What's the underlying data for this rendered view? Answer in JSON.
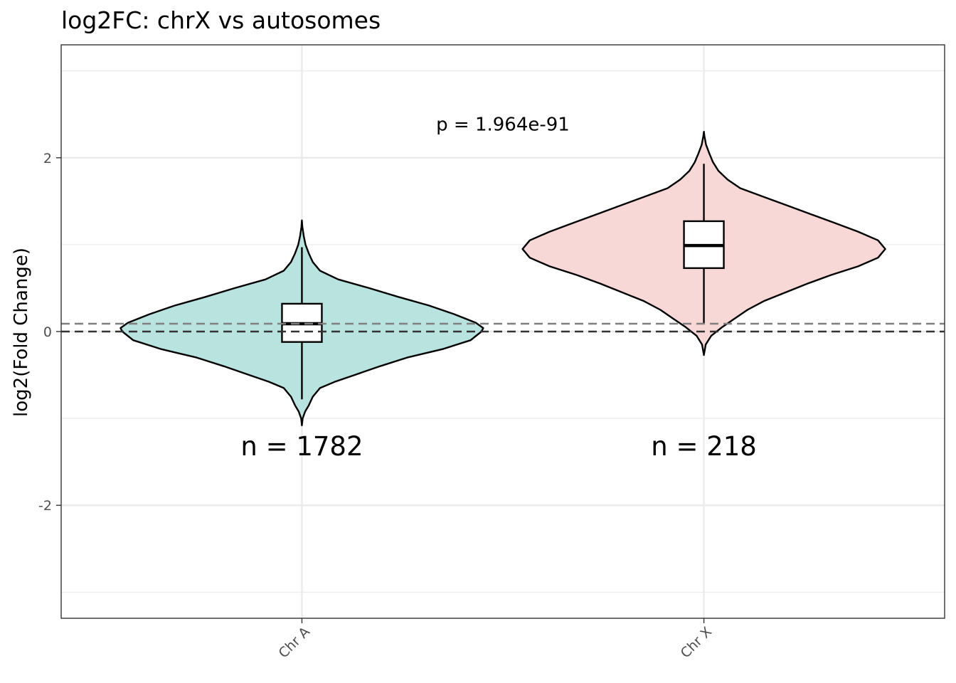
{
  "chart_data": {
    "type": "violin",
    "title": "log2FC: chrX vs autosomes",
    "xlabel": "",
    "ylabel": "log2(Fold Change)",
    "categories": [
      "Chr A",
      "Chr X"
    ],
    "ylim": [
      -3.3,
      3.3
    ],
    "y_ticks": [
      -2,
      0,
      2
    ],
    "y_tick_labels": [
      "-2",
      "0",
      "2"
    ],
    "grid": true,
    "reference_lines": [
      {
        "y": 0,
        "style": "dashed",
        "color": "#333333"
      },
      {
        "y": 0.09,
        "style": "dashed",
        "color": "#7f7f7f"
      }
    ],
    "series": [
      {
        "category": "Chr A",
        "fill": "#b8e3df",
        "n_label": "n = 1782",
        "box": {
          "whisker_low": -0.78,
          "q1": -0.12,
          "median": 0.09,
          "q3": 0.32,
          "whisker_high": 0.97
        },
        "violin_profile": [
          [
            -1.08,
            0.0
          ],
          [
            -1.0,
            0.004
          ],
          [
            -0.92,
            0.018
          ],
          [
            -0.85,
            0.038
          ],
          [
            -0.75,
            0.06
          ],
          [
            -0.65,
            0.1
          ],
          [
            -0.58,
            0.18
          ],
          [
            -0.5,
            0.29
          ],
          [
            -0.4,
            0.43
          ],
          [
            -0.3,
            0.58
          ],
          [
            -0.2,
            0.78
          ],
          [
            -0.1,
            0.93
          ],
          [
            0.0,
            0.99
          ],
          [
            0.04,
            1.0
          ],
          [
            0.1,
            0.96
          ],
          [
            0.2,
            0.84
          ],
          [
            0.3,
            0.7
          ],
          [
            0.4,
            0.53
          ],
          [
            0.5,
            0.37
          ],
          [
            0.6,
            0.2
          ],
          [
            0.7,
            0.1
          ],
          [
            0.8,
            0.06
          ],
          [
            0.9,
            0.038
          ],
          [
            1.0,
            0.02
          ],
          [
            1.1,
            0.01
          ],
          [
            1.2,
            0.003
          ],
          [
            1.28,
            0.0
          ]
        ]
      },
      {
        "category": "Chr X",
        "fill": "#f8d7d7",
        "n_label": "n = 218",
        "box": {
          "whisker_low": 0.09,
          "q1": 0.73,
          "median": 0.99,
          "q3": 1.27,
          "whisker_high": 1.93
        },
        "violin_profile": [
          [
            -0.27,
            0.0
          ],
          [
            -0.15,
            0.01
          ],
          [
            -0.05,
            0.04
          ],
          [
            0.05,
            0.1
          ],
          [
            0.15,
            0.17
          ],
          [
            0.25,
            0.24
          ],
          [
            0.35,
            0.33
          ],
          [
            0.45,
            0.45
          ],
          [
            0.55,
            0.57
          ],
          [
            0.65,
            0.7
          ],
          [
            0.75,
            0.85
          ],
          [
            0.85,
            0.96
          ],
          [
            0.95,
            1.0
          ],
          [
            1.05,
            0.96
          ],
          [
            1.15,
            0.85
          ],
          [
            1.25,
            0.72
          ],
          [
            1.35,
            0.59
          ],
          [
            1.45,
            0.46
          ],
          [
            1.55,
            0.33
          ],
          [
            1.65,
            0.2
          ],
          [
            1.75,
            0.13
          ],
          [
            1.85,
            0.08
          ],
          [
            1.95,
            0.05
          ],
          [
            2.05,
            0.03
          ],
          [
            2.15,
            0.012
          ],
          [
            2.25,
            0.003
          ],
          [
            2.3,
            0.0
          ]
        ]
      }
    ],
    "annotations": [
      {
        "text": "p = 1.964e-91",
        "x_between": [
          "Chr A",
          "Chr X"
        ],
        "y": 2.38,
        "size": "medium"
      }
    ]
  }
}
